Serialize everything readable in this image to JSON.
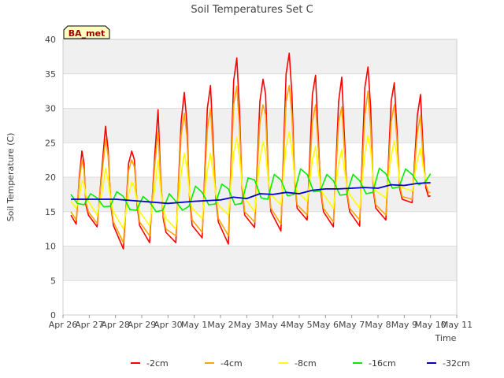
{
  "chart_data": {
    "type": "line",
    "title": "Soil Temperatures Set C",
    "xlabel": "Time",
    "ylabel": "Soil Temperature (C)",
    "ylim": [
      0,
      40
    ],
    "yticks": [
      0,
      5,
      10,
      15,
      20,
      25,
      30,
      35,
      40
    ],
    "xlim": [
      0,
      15
    ],
    "x_tick_labels": [
      "Apr 26",
      "Apr 27",
      "Apr 28",
      "Apr 29",
      "Apr 30",
      "May 1",
      "May 2",
      "May 3",
      "May 4",
      "May 5",
      "May 6",
      "May 7",
      "May 8",
      "May 9",
      "May 10",
      "May 11"
    ],
    "x_unit": "days since Apr 26 00:00",
    "grid": true,
    "legend_position": "bottom",
    "badge": "BA_met",
    "colors": {
      "-2cm": "#ff0000",
      "-4cm": "#ffa500",
      "-8cm": "#ffff00",
      "-16cm": "#00ee00",
      "-32cm": "#0000cc",
      "band": "#f0f0f0",
      "badge_bg": "#ffffc0",
      "badge_text": "#990000"
    },
    "series": [
      {
        "name": "-2cm",
        "x": [
          0.3,
          0.5,
          0.62,
          0.72,
          0.8,
          0.87,
          0.97,
          1.3,
          1.5,
          1.62,
          1.72,
          1.82,
          1.92,
          2.3,
          2.5,
          2.62,
          2.72,
          2.82,
          2.92,
          3.3,
          3.5,
          3.62,
          3.72,
          3.82,
          3.92,
          4.3,
          4.5,
          4.62,
          4.72,
          4.82,
          4.92,
          5.3,
          5.5,
          5.62,
          5.72,
          5.82,
          5.92,
          6.3,
          6.5,
          6.62,
          6.72,
          6.82,
          6.92,
          7.3,
          7.5,
          7.62,
          7.72,
          7.82,
          7.92,
          8.3,
          8.5,
          8.62,
          8.72,
          8.82,
          8.92,
          9.3,
          9.5,
          9.62,
          9.72,
          9.82,
          9.92,
          10.3,
          10.5,
          10.62,
          10.72,
          10.82,
          10.92,
          11.3,
          11.5,
          11.62,
          11.72,
          11.82,
          11.92,
          12.3,
          12.5,
          12.62,
          12.72,
          12.82,
          12.92,
          13.3,
          13.5,
          13.62,
          13.72,
          13.82,
          13.92,
          14.0
        ],
        "y": [
          14.5,
          13.2,
          20.0,
          23.8,
          22.0,
          16.0,
          14.5,
          12.8,
          22.0,
          27.4,
          24.0,
          16.0,
          13.0,
          9.6,
          22.0,
          23.8,
          22.5,
          16.0,
          13.0,
          10.5,
          23.5,
          29.8,
          20.0,
          14.0,
          12.0,
          10.5,
          28.0,
          32.3,
          28.0,
          17.0,
          13.0,
          11.2,
          30.0,
          33.3,
          25.0,
          17.0,
          13.5,
          10.3,
          34.0,
          37.3,
          30.0,
          18.5,
          14.5,
          12.7,
          31.0,
          34.2,
          32.0,
          20.0,
          15.0,
          12.2,
          35.0,
          38.0,
          32.0,
          20.0,
          15.5,
          13.8,
          32.0,
          34.8,
          26.0,
          18.0,
          15.0,
          12.8,
          31.0,
          34.5,
          26.0,
          17.5,
          15.0,
          12.9,
          33.0,
          36.0,
          30.0,
          18.0,
          15.5,
          13.8,
          31.0,
          33.7,
          27.0,
          18.5,
          16.8,
          16.3,
          29.0,
          32.0,
          24.0,
          18.5,
          17.2,
          17.3
        ]
      },
      {
        "name": "-4cm",
        "x": [
          0.3,
          0.5,
          0.62,
          0.72,
          0.8,
          0.87,
          0.97,
          1.3,
          1.5,
          1.62,
          1.72,
          1.82,
          1.92,
          2.3,
          2.5,
          2.62,
          2.72,
          2.82,
          2.92,
          3.3,
          3.5,
          3.62,
          3.72,
          3.82,
          3.92,
          4.3,
          4.5,
          4.62,
          4.72,
          4.82,
          4.92,
          5.3,
          5.5,
          5.62,
          5.72,
          5.82,
          5.92,
          6.3,
          6.5,
          6.62,
          6.72,
          6.82,
          6.92,
          7.3,
          7.5,
          7.62,
          7.72,
          7.82,
          7.92,
          8.3,
          8.5,
          8.62,
          8.72,
          8.82,
          8.92,
          9.3,
          9.5,
          9.62,
          9.72,
          9.82,
          9.92,
          10.3,
          10.5,
          10.62,
          10.72,
          10.82,
          10.92,
          11.3,
          11.5,
          11.62,
          11.72,
          11.82,
          11.92,
          12.3,
          12.5,
          12.62,
          12.72,
          12.82,
          12.92,
          13.3,
          13.5,
          13.62,
          13.72,
          13.82,
          13.92,
          14.0
        ],
        "y": [
          15.0,
          13.8,
          19.5,
          22.5,
          21.0,
          16.5,
          15.0,
          13.3,
          21.0,
          25.5,
          23.0,
          16.5,
          13.5,
          10.5,
          21.0,
          22.5,
          21.5,
          16.5,
          13.5,
          11.5,
          22.0,
          26.5,
          19.5,
          14.5,
          12.5,
          11.5,
          26.0,
          29.3,
          26.0,
          17.5,
          13.8,
          12.0,
          27.0,
          30.0,
          23.5,
          17.5,
          14.0,
          11.5,
          30.5,
          33.2,
          27.5,
          19.0,
          15.0,
          13.5,
          28.0,
          30.5,
          29.0,
          20.0,
          15.5,
          13.2,
          31.0,
          33.3,
          29.0,
          20.0,
          16.0,
          14.5,
          28.0,
          30.5,
          24.5,
          18.5,
          15.5,
          13.5,
          28.0,
          30.2,
          24.0,
          18.0,
          15.5,
          13.8,
          29.0,
          32.5,
          27.0,
          18.5,
          16.0,
          14.5,
          28.0,
          30.5,
          25.5,
          19.0,
          17.2,
          16.8,
          26.5,
          29.0,
          22.5,
          19.0,
          17.8,
          17.8
        ]
      },
      {
        "name": "-8cm",
        "x": [
          0.3,
          0.5,
          0.62,
          0.72,
          0.8,
          0.87,
          0.97,
          1.3,
          1.5,
          1.62,
          1.72,
          1.82,
          1.92,
          2.3,
          2.5,
          2.62,
          2.72,
          2.82,
          2.92,
          3.3,
          3.5,
          3.62,
          3.72,
          3.82,
          3.92,
          4.3,
          4.5,
          4.62,
          4.72,
          4.82,
          4.92,
          5.3,
          5.5,
          5.62,
          5.72,
          5.82,
          5.92,
          6.3,
          6.5,
          6.62,
          6.72,
          6.82,
          6.92,
          7.3,
          7.5,
          7.62,
          7.72,
          7.82,
          7.92,
          8.3,
          8.5,
          8.62,
          8.72,
          8.82,
          8.92,
          9.3,
          9.5,
          9.62,
          9.72,
          9.82,
          9.92,
          10.3,
          10.5,
          10.62,
          10.72,
          10.82,
          10.92,
          11.3,
          11.5,
          11.62,
          11.72,
          11.82,
          11.92,
          12.3,
          12.5,
          12.62,
          12.72,
          12.82,
          12.92,
          13.3,
          13.5,
          13.62,
          13.72,
          13.82,
          13.92,
          14.0
        ],
        "y": [
          16.5,
          15.5,
          17.0,
          19.5,
          19.0,
          17.5,
          16.5,
          14.5,
          18.0,
          21.3,
          19.5,
          16.5,
          15.0,
          12.5,
          17.5,
          19.3,
          18.5,
          16.5,
          15.0,
          13.0,
          18.5,
          22.5,
          18.0,
          15.5,
          14.0,
          12.5,
          20.5,
          23.5,
          21.5,
          17.5,
          15.5,
          14.0,
          21.0,
          23.5,
          20.5,
          17.5,
          16.0,
          14.5,
          23.5,
          25.8,
          23.0,
          19.0,
          17.0,
          15.0,
          22.5,
          25.2,
          23.5,
          19.5,
          17.5,
          16.0,
          24.5,
          26.6,
          24.0,
          20.0,
          18.0,
          16.5,
          22.5,
          24.5,
          21.0,
          18.5,
          17.5,
          15.5,
          22.0,
          24.0,
          21.0,
          18.5,
          17.5,
          15.5,
          23.5,
          26.0,
          24.0,
          19.5,
          18.0,
          17.0,
          23.0,
          25.3,
          23.0,
          19.5,
          18.5,
          18.0,
          22.5,
          24.2,
          21.5,
          19.5,
          19.0,
          19.0
        ]
      },
      {
        "name": "-16cm",
        "x": [
          0.3,
          0.55,
          0.8,
          1.05,
          1.3,
          1.55,
          1.8,
          2.05,
          2.3,
          2.55,
          2.8,
          3.05,
          3.3,
          3.55,
          3.8,
          4.05,
          4.3,
          4.55,
          4.8,
          5.05,
          5.3,
          5.55,
          5.8,
          6.05,
          6.3,
          6.55,
          6.8,
          7.05,
          7.3,
          7.55,
          7.8,
          8.05,
          8.3,
          8.55,
          8.8,
          9.05,
          9.3,
          9.55,
          9.8,
          10.05,
          10.3,
          10.55,
          10.8,
          11.05,
          11.3,
          11.55,
          11.8,
          12.05,
          12.3,
          12.55,
          12.8,
          13.05,
          13.3,
          13.55,
          13.8,
          14.0
        ],
        "y": [
          17.5,
          16.2,
          16.0,
          17.6,
          17.0,
          15.7,
          15.8,
          17.9,
          17.2,
          15.3,
          15.2,
          17.2,
          16.4,
          15.0,
          15.2,
          17.6,
          16.5,
          15.2,
          15.8,
          18.7,
          17.8,
          16.0,
          16.1,
          19.0,
          18.3,
          16.0,
          16.2,
          19.9,
          19.6,
          17.0,
          16.8,
          20.4,
          19.6,
          17.3,
          17.5,
          21.2,
          20.4,
          17.9,
          18.0,
          20.4,
          19.5,
          17.4,
          17.5,
          20.4,
          19.5,
          17.6,
          17.8,
          21.3,
          20.5,
          18.4,
          18.6,
          21.2,
          20.4,
          18.9,
          19.3,
          20.5
        ]
      },
      {
        "name": "-32cm",
        "x": [
          0.3,
          1.0,
          2.0,
          3.0,
          4.0,
          5.0,
          6.0,
          6.5,
          7.0,
          7.5,
          8.0,
          8.5,
          9.0,
          9.5,
          10.0,
          10.5,
          11.0,
          11.5,
          12.0,
          12.5,
          13.0,
          13.5,
          14.0
        ],
        "y": [
          16.8,
          16.8,
          16.8,
          16.5,
          16.2,
          16.5,
          16.7,
          17.1,
          16.9,
          17.6,
          17.5,
          17.8,
          17.6,
          18.1,
          18.3,
          18.3,
          18.4,
          18.5,
          18.4,
          18.9,
          18.8,
          19.1,
          19.2
        ]
      }
    ]
  }
}
